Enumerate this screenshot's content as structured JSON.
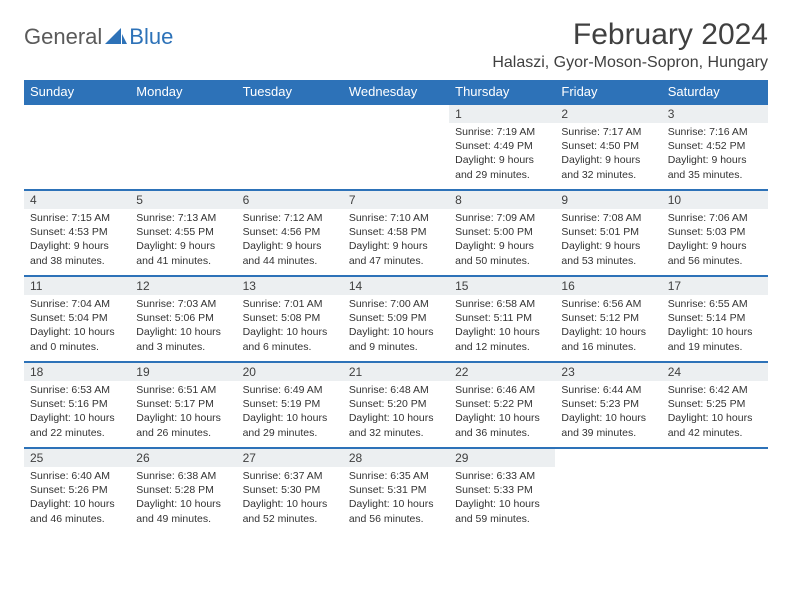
{
  "logo": {
    "text_general": "General",
    "text_blue": "Blue"
  },
  "title": "February 2024",
  "location": "Halaszi, Gyor-Moson-Sopron, Hungary",
  "colors": {
    "header_bg": "#2d72b8",
    "header_fg": "#ffffff",
    "daynum_bg": "#eceff1",
    "border": "#2d72b8",
    "text": "#333333",
    "title_color": "#404040"
  },
  "weekdays": [
    "Sunday",
    "Monday",
    "Tuesday",
    "Wednesday",
    "Thursday",
    "Friday",
    "Saturday"
  ],
  "weeks": [
    [
      null,
      null,
      null,
      null,
      {
        "n": "1",
        "sr": "7:19 AM",
        "ss": "4:49 PM",
        "dl": "9 hours and 29 minutes."
      },
      {
        "n": "2",
        "sr": "7:17 AM",
        "ss": "4:50 PM",
        "dl": "9 hours and 32 minutes."
      },
      {
        "n": "3",
        "sr": "7:16 AM",
        "ss": "4:52 PM",
        "dl": "9 hours and 35 minutes."
      }
    ],
    [
      {
        "n": "4",
        "sr": "7:15 AM",
        "ss": "4:53 PM",
        "dl": "9 hours and 38 minutes."
      },
      {
        "n": "5",
        "sr": "7:13 AM",
        "ss": "4:55 PM",
        "dl": "9 hours and 41 minutes."
      },
      {
        "n": "6",
        "sr": "7:12 AM",
        "ss": "4:56 PM",
        "dl": "9 hours and 44 minutes."
      },
      {
        "n": "7",
        "sr": "7:10 AM",
        "ss": "4:58 PM",
        "dl": "9 hours and 47 minutes."
      },
      {
        "n": "8",
        "sr": "7:09 AM",
        "ss": "5:00 PM",
        "dl": "9 hours and 50 minutes."
      },
      {
        "n": "9",
        "sr": "7:08 AM",
        "ss": "5:01 PM",
        "dl": "9 hours and 53 minutes."
      },
      {
        "n": "10",
        "sr": "7:06 AM",
        "ss": "5:03 PM",
        "dl": "9 hours and 56 minutes."
      }
    ],
    [
      {
        "n": "11",
        "sr": "7:04 AM",
        "ss": "5:04 PM",
        "dl": "10 hours and 0 minutes."
      },
      {
        "n": "12",
        "sr": "7:03 AM",
        "ss": "5:06 PM",
        "dl": "10 hours and 3 minutes."
      },
      {
        "n": "13",
        "sr": "7:01 AM",
        "ss": "5:08 PM",
        "dl": "10 hours and 6 minutes."
      },
      {
        "n": "14",
        "sr": "7:00 AM",
        "ss": "5:09 PM",
        "dl": "10 hours and 9 minutes."
      },
      {
        "n": "15",
        "sr": "6:58 AM",
        "ss": "5:11 PM",
        "dl": "10 hours and 12 minutes."
      },
      {
        "n": "16",
        "sr": "6:56 AM",
        "ss": "5:12 PM",
        "dl": "10 hours and 16 minutes."
      },
      {
        "n": "17",
        "sr": "6:55 AM",
        "ss": "5:14 PM",
        "dl": "10 hours and 19 minutes."
      }
    ],
    [
      {
        "n": "18",
        "sr": "6:53 AM",
        "ss": "5:16 PM",
        "dl": "10 hours and 22 minutes."
      },
      {
        "n": "19",
        "sr": "6:51 AM",
        "ss": "5:17 PM",
        "dl": "10 hours and 26 minutes."
      },
      {
        "n": "20",
        "sr": "6:49 AM",
        "ss": "5:19 PM",
        "dl": "10 hours and 29 minutes."
      },
      {
        "n": "21",
        "sr": "6:48 AM",
        "ss": "5:20 PM",
        "dl": "10 hours and 32 minutes."
      },
      {
        "n": "22",
        "sr": "6:46 AM",
        "ss": "5:22 PM",
        "dl": "10 hours and 36 minutes."
      },
      {
        "n": "23",
        "sr": "6:44 AM",
        "ss": "5:23 PM",
        "dl": "10 hours and 39 minutes."
      },
      {
        "n": "24",
        "sr": "6:42 AM",
        "ss": "5:25 PM",
        "dl": "10 hours and 42 minutes."
      }
    ],
    [
      {
        "n": "25",
        "sr": "6:40 AM",
        "ss": "5:26 PM",
        "dl": "10 hours and 46 minutes."
      },
      {
        "n": "26",
        "sr": "6:38 AM",
        "ss": "5:28 PM",
        "dl": "10 hours and 49 minutes."
      },
      {
        "n": "27",
        "sr": "6:37 AM",
        "ss": "5:30 PM",
        "dl": "10 hours and 52 minutes."
      },
      {
        "n": "28",
        "sr": "6:35 AM",
        "ss": "5:31 PM",
        "dl": "10 hours and 56 minutes."
      },
      {
        "n": "29",
        "sr": "6:33 AM",
        "ss": "5:33 PM",
        "dl": "10 hours and 59 minutes."
      },
      null,
      null
    ]
  ],
  "labels": {
    "sunrise": "Sunrise:",
    "sunset": "Sunset:",
    "daylight": "Daylight:"
  }
}
